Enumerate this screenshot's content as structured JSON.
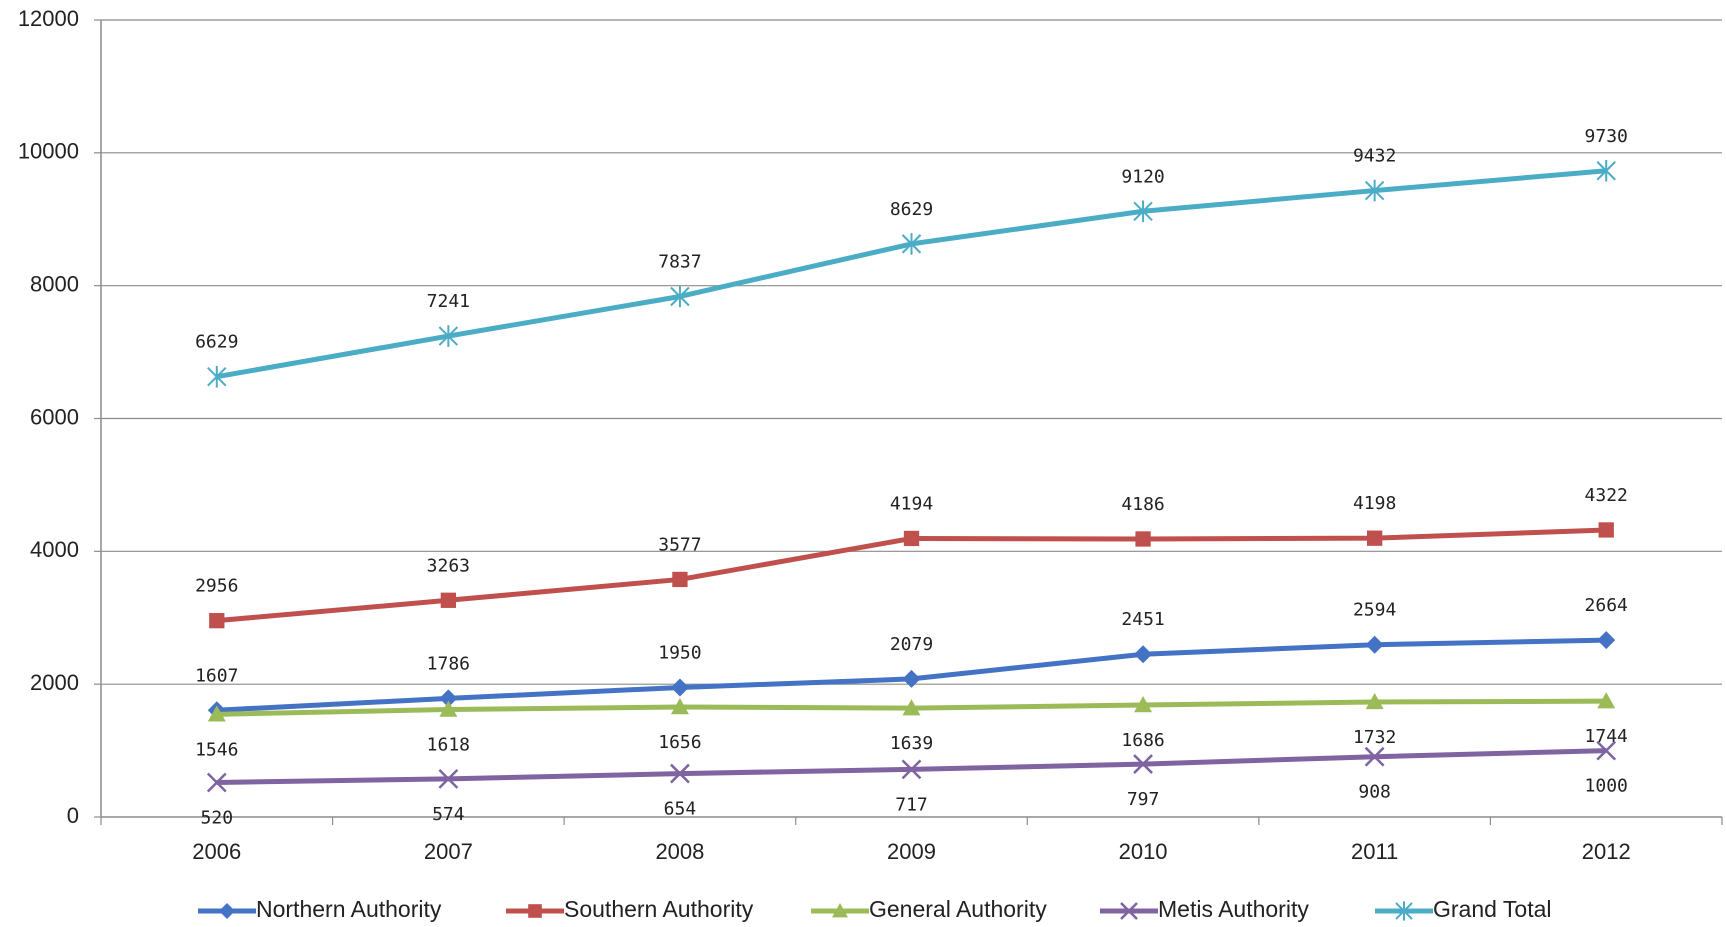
{
  "chart_data": {
    "type": "line",
    "categories": [
      "2006",
      "2007",
      "2008",
      "2009",
      "2010",
      "2011",
      "2012"
    ],
    "series": [
      {
        "name": "Northern Authority",
        "color": "#4472c4",
        "marker": "diamond",
        "values": [
          1607,
          1786,
          1950,
          2079,
          2451,
          2594,
          2664
        ]
      },
      {
        "name": "Southern Authority",
        "color": "#c0504d",
        "marker": "square",
        "values": [
          2956,
          3263,
          3577,
          4194,
          4186,
          4198,
          4322
        ]
      },
      {
        "name": "General Authority",
        "color": "#9bbb59",
        "marker": "triangle",
        "values": [
          1546,
          1618,
          1656,
          1639,
          1686,
          1732,
          1744
        ]
      },
      {
        "name": "Metis Authority",
        "color": "#8064a2",
        "marker": "x",
        "values": [
          520,
          574,
          654,
          717,
          797,
          908,
          1000
        ]
      },
      {
        "name": "Grand Total",
        "color": "#4bacc6",
        "marker": "star",
        "values": [
          6629,
          7241,
          7837,
          8629,
          9120,
          9432,
          9730
        ]
      }
    ],
    "ylim": [
      0,
      12000
    ],
    "yticks": [
      0,
      2000,
      4000,
      6000,
      8000,
      10000,
      12000
    ],
    "grid": true,
    "legend": "bottom"
  }
}
